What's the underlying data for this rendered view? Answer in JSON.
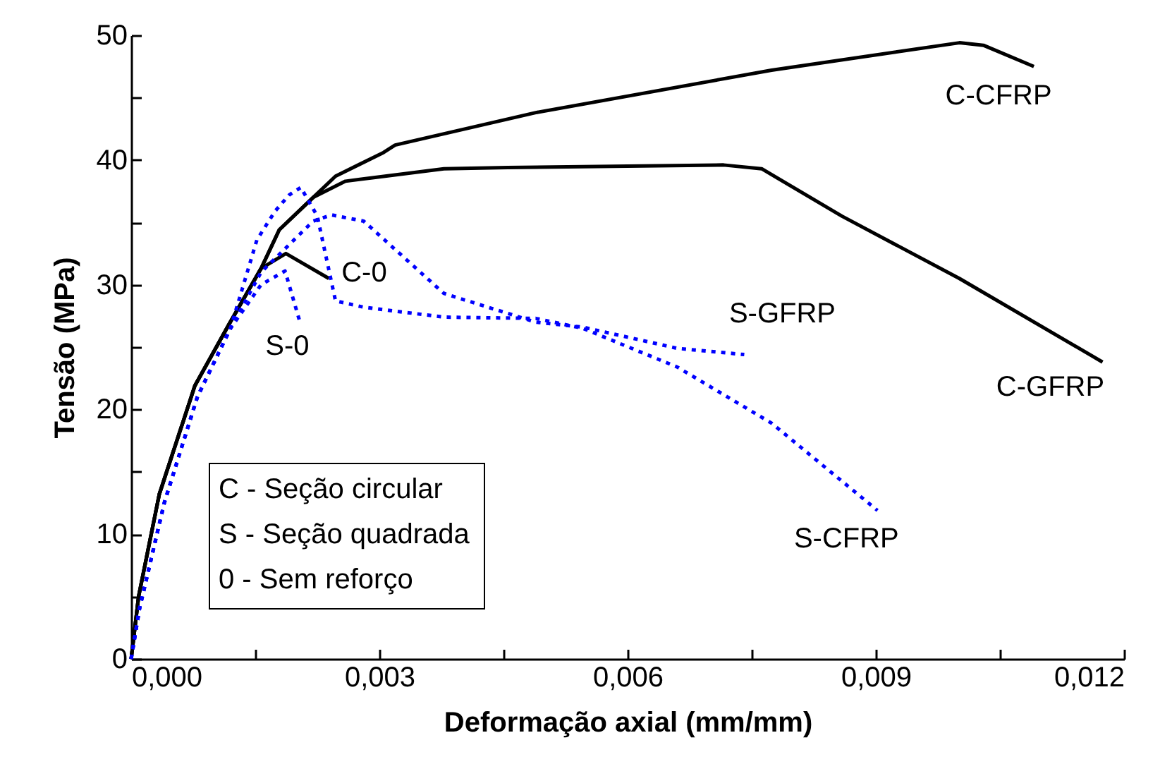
{
  "chart_data": {
    "type": "line",
    "xlabel": "Deformação axial (mm/mm)",
    "ylabel": "Tensão (MPa)",
    "xlim": [
      0,
      0.012
    ],
    "ylim": [
      0,
      50
    ],
    "xticks": [
      {
        "value": 0,
        "label": "0,000"
      },
      {
        "value": 0.0015,
        "label": null
      },
      {
        "value": 0.003,
        "label": "0,003"
      },
      {
        "value": 0.0045,
        "label": null
      },
      {
        "value": 0.006,
        "label": "0,006"
      },
      {
        "value": 0.0075,
        "label": null
      },
      {
        "value": 0.009,
        "label": "0,009"
      },
      {
        "value": 0.0105,
        "label": null
      },
      {
        "value": 0.012,
        "label": "0,012"
      }
    ],
    "yticks": [
      0,
      {
        "value": 5,
        "label": null
      },
      10,
      {
        "value": 15,
        "label": null
      },
      20,
      {
        "value": 25,
        "label": null
      },
      30,
      {
        "value": 35,
        "label": null
      },
      40,
      {
        "value": 45,
        "label": null
      },
      50
    ],
    "grid": false,
    "legend": false,
    "marker": "none",
    "series": [
      {
        "name": "C-CFRP",
        "color": "#000000",
        "line_style": "solid",
        "x": [
          0,
          9e-05,
          0.00034,
          0.00077,
          0.00118,
          0.00157,
          0.00179,
          0.0022,
          0.00247,
          0.00305,
          0.00319,
          0.00489,
          0.00774,
          0.01001,
          0.0103,
          0.01091
        ],
        "values": [
          0,
          5.0,
          13.2,
          21.9,
          26.8,
          31.3,
          34.4,
          37.0,
          38.7,
          40.6,
          41.2,
          43.8,
          47.2,
          49.4,
          49.2,
          47.5
        ]
      },
      {
        "name": "C-GFRP",
        "color": "#000000",
        "line_style": "solid",
        "x": [
          0,
          9e-05,
          0.00034,
          0.00077,
          0.00118,
          0.00157,
          0.00179,
          0.0022,
          0.00259,
          0.00378,
          0.00455,
          0.00716,
          0.00762,
          0.00859,
          0.01001,
          0.01174
        ],
        "values": [
          0,
          5.0,
          13.2,
          21.9,
          26.8,
          31.3,
          34.4,
          37.0,
          38.3,
          39.3,
          39.4,
          39.6,
          39.3,
          35.5,
          30.5,
          23.8
        ]
      },
      {
        "name": "C-0",
        "color": "#000000",
        "line_style": "solid",
        "x": [
          0,
          9e-05,
          0.00034,
          0.00077,
          0.00118,
          0.00157,
          0.00187,
          0.00239
        ],
        "values": [
          0,
          5.0,
          13.2,
          21.9,
          26.8,
          31.3,
          32.5,
          30.5
        ]
      },
      {
        "name": "S-CFRP",
        "color": "#0000ff",
        "line_style": "dotted",
        "x": [
          0,
          0.0001,
          0.0004,
          0.0008,
          0.0012,
          0.00152,
          0.00174,
          0.00191,
          0.00205,
          0.00225,
          0.00247,
          0.00281,
          0.00378,
          0.00489,
          0.00546,
          0.0066,
          0.00774,
          0.00902
        ],
        "values": [
          0,
          4,
          12.5,
          21,
          26.5,
          33.6,
          35.9,
          37.2,
          37.8,
          35.5,
          28.7,
          28.2,
          27.4,
          27.3,
          26.5,
          23.4,
          18.9,
          11.9
        ]
      },
      {
        "name": "S-GFRP",
        "color": "#0000ff",
        "line_style": "dotted",
        "x": [
          0,
          0.0001,
          0.0004,
          0.0008,
          0.0012,
          0.00157,
          0.0022,
          0.00242,
          0.00281,
          0.00378,
          0.00489,
          0.00546,
          0.0066,
          0.00741
        ],
        "values": [
          0,
          4,
          12.5,
          21,
          26.5,
          31.0,
          35.1,
          35.6,
          35.1,
          29.3,
          27.0,
          26.6,
          24.9,
          24.4
        ]
      },
      {
        "name": "S-0",
        "color": "#0000ff",
        "line_style": "dotted",
        "x": [
          0,
          0.0001,
          0.0004,
          0.0008,
          0.0012,
          0.00157,
          0.00186,
          0.00204
        ],
        "values": [
          0,
          4,
          12.5,
          21,
          26.5,
          30.0,
          31.1,
          27.0
        ]
      }
    ],
    "annotations": [
      "C - Seção circular",
      "S - Seção quadrada",
      "0 - Sem reforço"
    ]
  }
}
